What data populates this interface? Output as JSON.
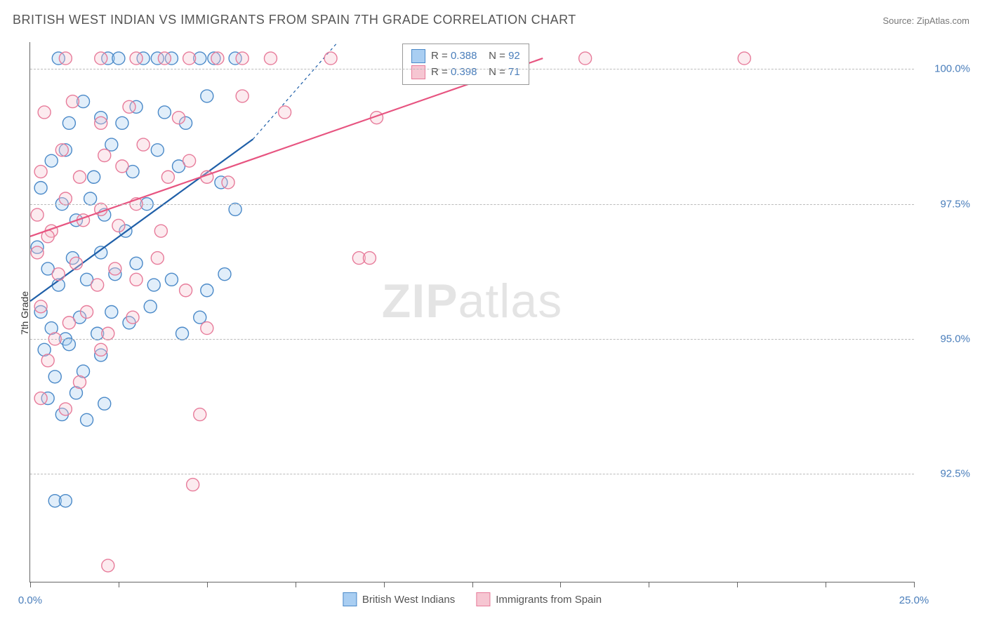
{
  "title": "BRITISH WEST INDIAN VS IMMIGRANTS FROM SPAIN 7TH GRADE CORRELATION CHART",
  "source": "Source: ZipAtlas.com",
  "ylabel": "7th Grade",
  "watermark_bold": "ZIP",
  "watermark_rest": "atlas",
  "chart": {
    "type": "scatter",
    "background_color": "#ffffff",
    "grid_color": "#bbbbbb",
    "grid_dash": true,
    "axis_color": "#666666",
    "xlim": [
      0,
      25
    ],
    "ylim": [
      90.5,
      100.5
    ],
    "xtick_positions": [
      0,
      2.5,
      5,
      7.5,
      10,
      12.5,
      15,
      17.5,
      20,
      22.5,
      25
    ],
    "xtick_labels": {
      "0": "0.0%",
      "25": "25.0%"
    },
    "ytick_positions": [
      92.5,
      95.0,
      97.5,
      100.0
    ],
    "ytick_labels": [
      "92.5%",
      "95.0%",
      "97.5%",
      "100.0%"
    ],
    "tick_label_color": "#4a7ebb",
    "tick_label_fontsize": 15,
    "title_fontsize": 18,
    "title_color": "#555555",
    "ylabel_fontsize": 14,
    "marker_radius": 9,
    "marker_fill_opacity": 0.35,
    "marker_stroke_width": 1.4
  },
  "series": [
    {
      "name": "British West Indians",
      "color_fill": "#a9cef2",
      "color_stroke": "#4a89c8",
      "R": "0.388",
      "N": "92",
      "trend": {
        "x1": 0,
        "y1": 95.7,
        "x2": 6.3,
        "y2": 98.7,
        "dash_x2": 8.7,
        "dash_y2": 100.5,
        "color": "#1f5fa8",
        "width": 2.2
      },
      "points": [
        [
          0.8,
          100.2
        ],
        [
          2.2,
          100.2
        ],
        [
          2.5,
          100.2
        ],
        [
          3.2,
          100.2
        ],
        [
          3.6,
          100.2
        ],
        [
          4.0,
          100.2
        ],
        [
          4.8,
          100.2
        ],
        [
          5.2,
          100.2
        ],
        [
          5.8,
          100.2
        ],
        [
          1.1,
          99.0
        ],
        [
          1.5,
          99.4
        ],
        [
          2.0,
          99.1
        ],
        [
          2.6,
          99.0
        ],
        [
          3.0,
          99.3
        ],
        [
          3.8,
          99.2
        ],
        [
          4.4,
          99.0
        ],
        [
          5.0,
          99.5
        ],
        [
          0.6,
          98.3
        ],
        [
          1.0,
          98.5
        ],
        [
          1.8,
          98.0
        ],
        [
          2.3,
          98.6
        ],
        [
          2.9,
          98.1
        ],
        [
          3.6,
          98.5
        ],
        [
          4.2,
          98.2
        ],
        [
          5.4,
          97.9
        ],
        [
          0.3,
          97.8
        ],
        [
          0.9,
          97.5
        ],
        [
          1.3,
          97.2
        ],
        [
          1.7,
          97.6
        ],
        [
          2.1,
          97.3
        ],
        [
          2.7,
          97.0
        ],
        [
          3.3,
          97.5
        ],
        [
          5.8,
          97.4
        ],
        [
          0.2,
          96.7
        ],
        [
          0.5,
          96.3
        ],
        [
          0.8,
          96.0
        ],
        [
          1.2,
          96.5
        ],
        [
          1.6,
          96.1
        ],
        [
          2.0,
          96.6
        ],
        [
          2.4,
          96.2
        ],
        [
          3.0,
          96.4
        ],
        [
          3.5,
          96.0
        ],
        [
          4.0,
          96.1
        ],
        [
          5.0,
          95.9
        ],
        [
          5.5,
          96.2
        ],
        [
          0.3,
          95.5
        ],
        [
          0.6,
          95.2
        ],
        [
          1.0,
          95.0
        ],
        [
          1.4,
          95.4
        ],
        [
          1.9,
          95.1
        ],
        [
          2.3,
          95.5
        ],
        [
          2.8,
          95.3
        ],
        [
          3.4,
          95.6
        ],
        [
          4.3,
          95.1
        ],
        [
          4.8,
          95.4
        ],
        [
          0.4,
          94.8
        ],
        [
          0.7,
          94.3
        ],
        [
          1.1,
          94.9
        ],
        [
          1.5,
          94.4
        ],
        [
          2.0,
          94.7
        ],
        [
          1.3,
          94.0
        ],
        [
          0.5,
          93.9
        ],
        [
          0.9,
          93.6
        ],
        [
          1.6,
          93.5
        ],
        [
          2.1,
          93.8
        ],
        [
          0.7,
          92.0
        ],
        [
          1.0,
          92.0
        ]
      ]
    },
    {
      "name": "Immigrants from Spain",
      "color_fill": "#f6c6d2",
      "color_stroke": "#e77b9a",
      "R": "0.398",
      "N": "71",
      "trend": {
        "x1": 0,
        "y1": 96.9,
        "x2": 14.5,
        "y2": 100.2,
        "dash_x2": 14.5,
        "dash_y2": 100.2,
        "color": "#e75480",
        "width": 2.2
      },
      "points": [
        [
          1.0,
          100.2
        ],
        [
          2.0,
          100.2
        ],
        [
          3.0,
          100.2
        ],
        [
          3.8,
          100.2
        ],
        [
          4.5,
          100.2
        ],
        [
          5.3,
          100.2
        ],
        [
          6.0,
          100.2
        ],
        [
          6.8,
          100.2
        ],
        [
          8.5,
          100.2
        ],
        [
          15.7,
          100.2
        ],
        [
          20.2,
          100.2
        ],
        [
          0.4,
          99.2
        ],
        [
          1.2,
          99.4
        ],
        [
          2.0,
          99.0
        ],
        [
          2.8,
          99.3
        ],
        [
          4.2,
          99.1
        ],
        [
          6.0,
          99.5
        ],
        [
          7.2,
          99.2
        ],
        [
          9.8,
          99.1
        ],
        [
          0.3,
          98.1
        ],
        [
          0.9,
          98.5
        ],
        [
          1.4,
          98.0
        ],
        [
          2.1,
          98.4
        ],
        [
          2.6,
          98.2
        ],
        [
          3.2,
          98.6
        ],
        [
          3.9,
          98.0
        ],
        [
          4.5,
          98.3
        ],
        [
          5.0,
          98.0
        ],
        [
          5.6,
          97.9
        ],
        [
          0.2,
          97.3
        ],
        [
          0.6,
          97.0
        ],
        [
          1.0,
          97.6
        ],
        [
          1.5,
          97.2
        ],
        [
          2.0,
          97.4
        ],
        [
          2.5,
          97.1
        ],
        [
          3.0,
          97.5
        ],
        [
          3.7,
          97.0
        ],
        [
          0.2,
          96.6
        ],
        [
          0.5,
          96.9
        ],
        [
          0.8,
          96.2
        ],
        [
          1.3,
          96.4
        ],
        [
          1.9,
          96.0
        ],
        [
          2.4,
          96.3
        ],
        [
          3.0,
          96.1
        ],
        [
          3.6,
          96.5
        ],
        [
          4.4,
          95.9
        ],
        [
          9.3,
          96.5
        ],
        [
          9.6,
          96.5
        ],
        [
          0.3,
          95.6
        ],
        [
          0.7,
          95.0
        ],
        [
          1.1,
          95.3
        ],
        [
          1.6,
          95.5
        ],
        [
          2.2,
          95.1
        ],
        [
          2.9,
          95.4
        ],
        [
          5.0,
          95.2
        ],
        [
          0.5,
          94.6
        ],
        [
          1.4,
          94.2
        ],
        [
          2.0,
          94.8
        ],
        [
          0.3,
          93.9
        ],
        [
          1.0,
          93.7
        ],
        [
          4.8,
          93.6
        ],
        [
          4.6,
          92.3
        ],
        [
          2.2,
          90.8
        ]
      ]
    }
  ],
  "legend_rvals": {
    "prefix": "R = ",
    "n_prefix": "N = "
  },
  "bottom_legend": {
    "items": [
      "British West Indians",
      "Immigrants from Spain"
    ]
  }
}
